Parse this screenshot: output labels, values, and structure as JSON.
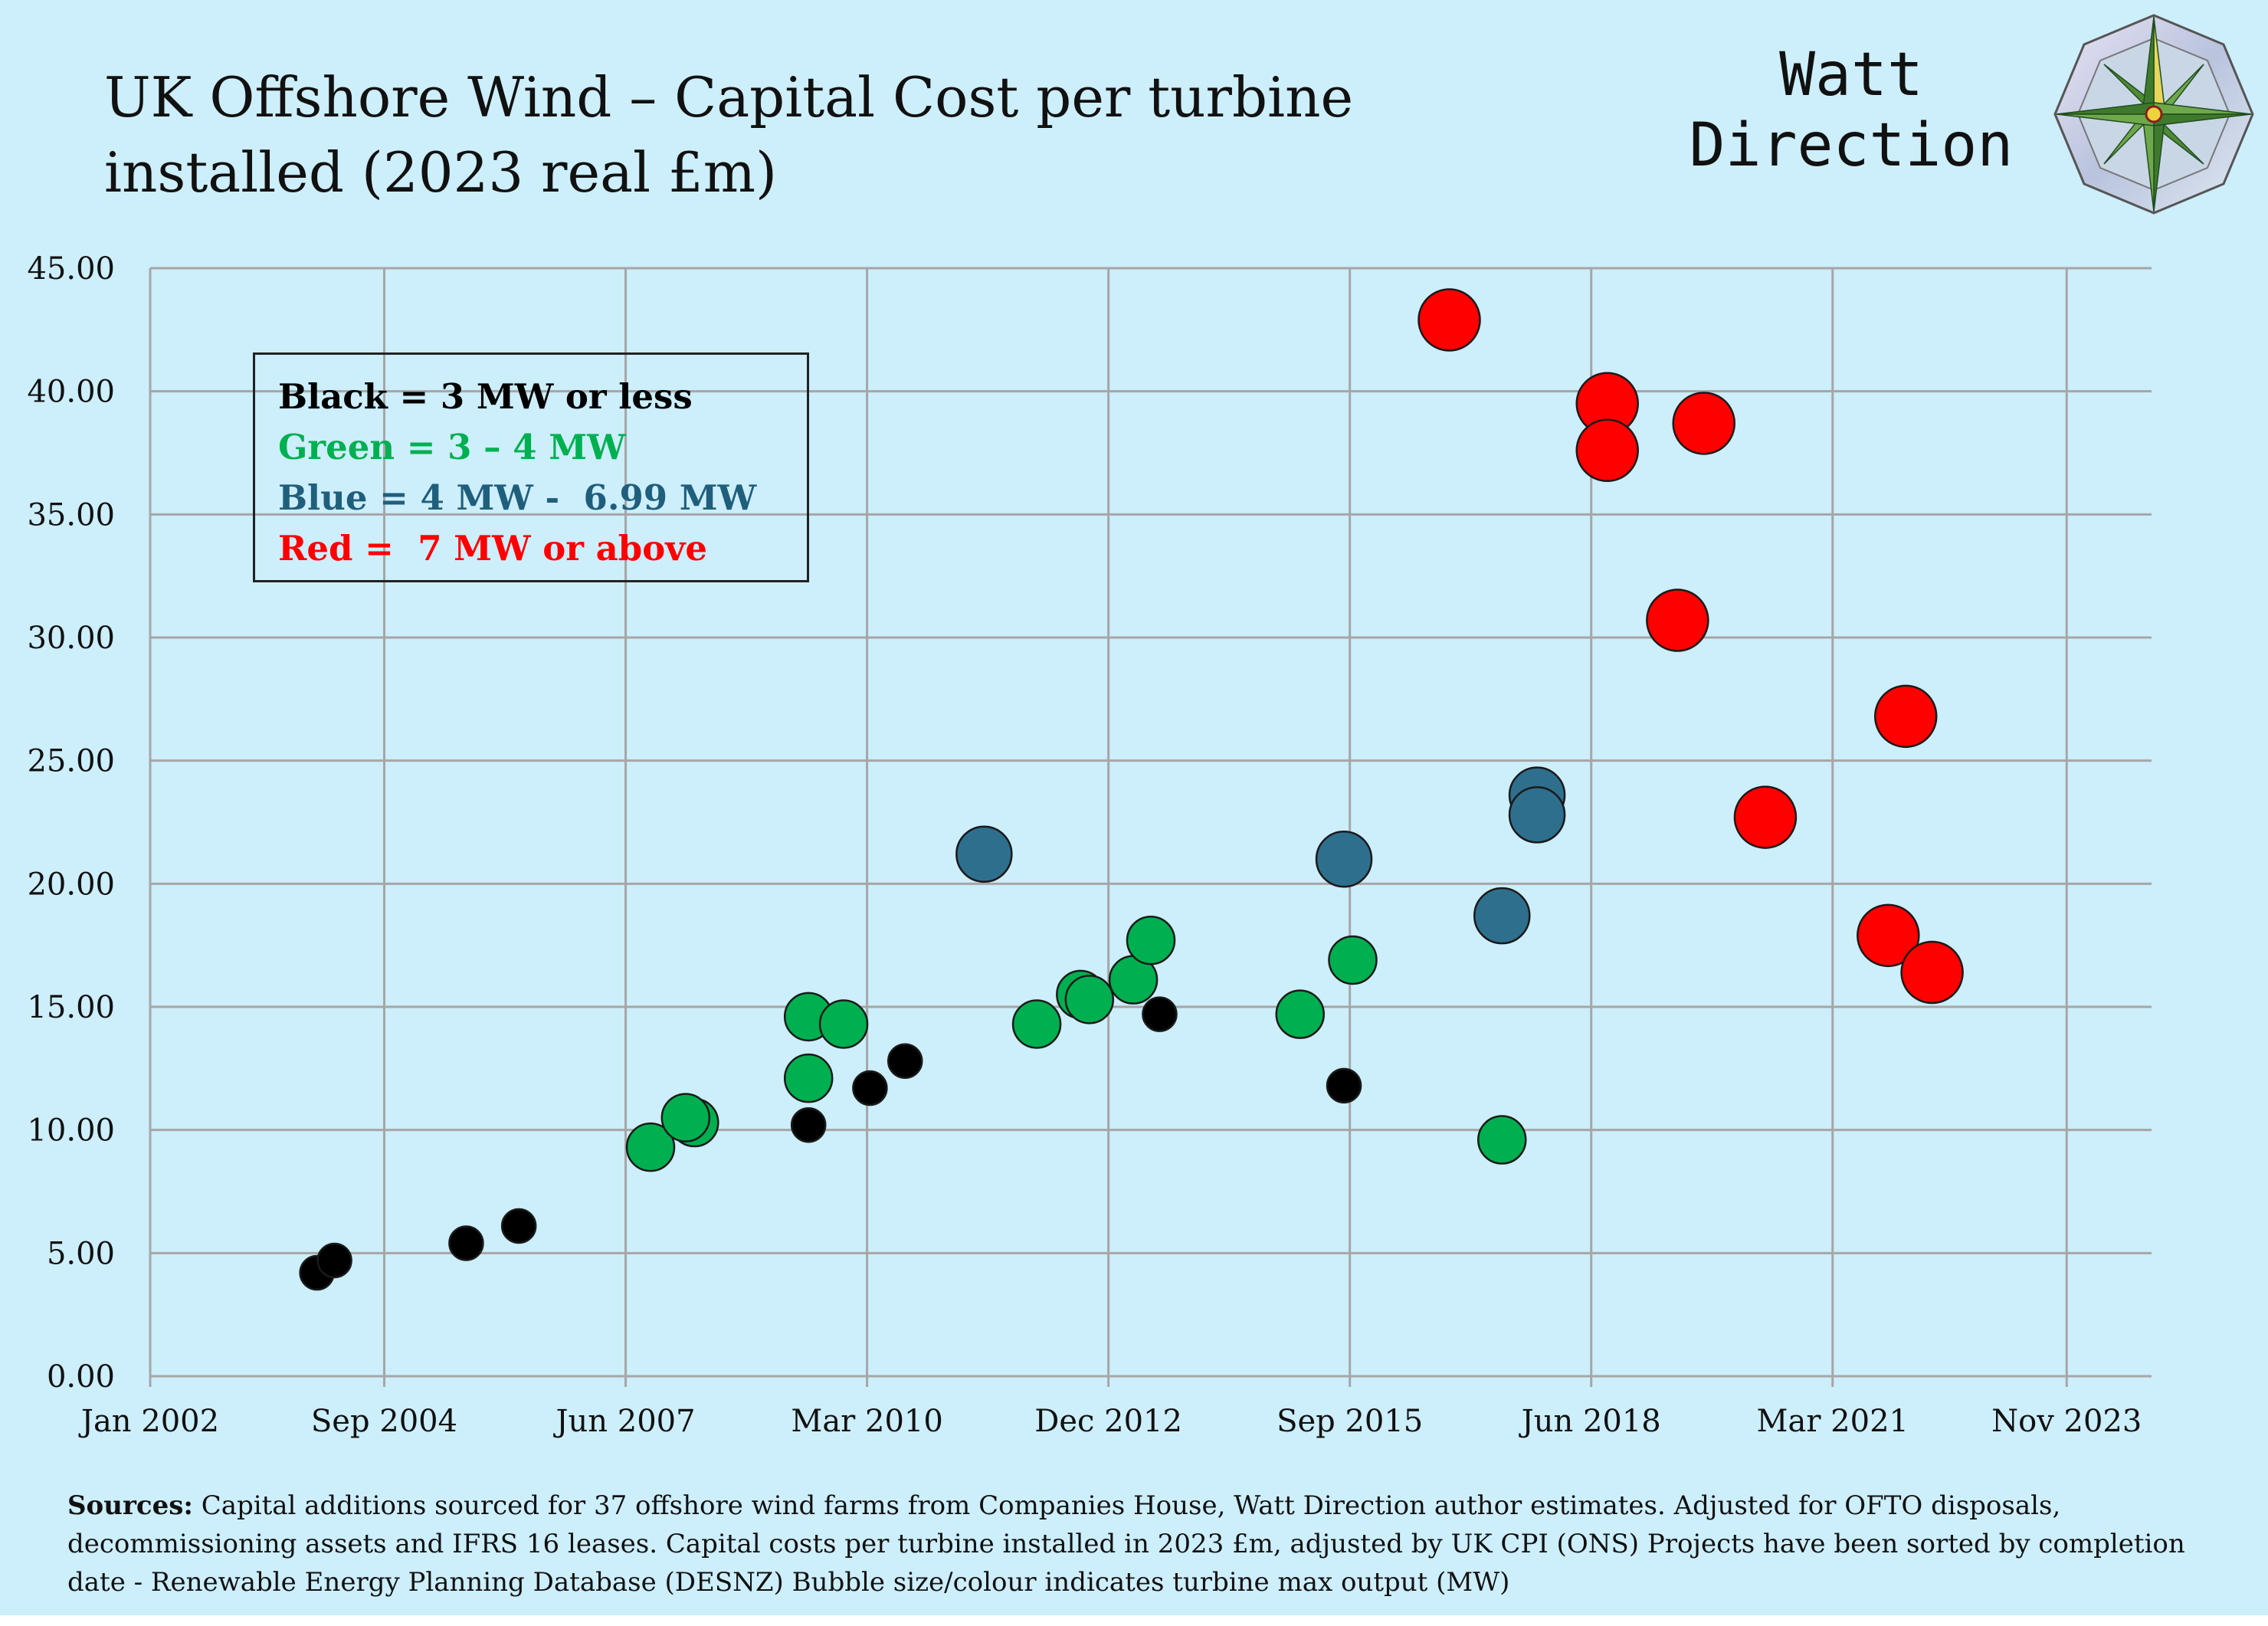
{
  "header": {
    "title": "UK Offshore Wind – Capital Cost per turbine\ninstalled  (2023 real £m)",
    "brand_line1": "Watt",
    "brand_line2": "Direction",
    "logo_icon": "compass-rose-icon"
  },
  "legend": {
    "black": "Black = 3 MW or less",
    "green": "Green = 3 – 4 MW",
    "blue": "Blue = 4 MW -  6.99 MW",
    "red": "Red =  7 MW or above"
  },
  "colors": {
    "background": "#cdeefb",
    "black": "#000000",
    "green": "#00b050",
    "blue": "#2e6f8e",
    "red": "#ff0000",
    "grid": "#a6a6a6"
  },
  "sources": {
    "label": "Sources:",
    "text": " Capital additions sourced for 37 offshore wind farms from Companies House, Watt Direction author estimates. Adjusted for OFTO disposals, decommissioning assets and IFRS 16 leases. Capital costs per turbine installed in 2023 £m, adjusted by  UK CPI (ONS) Projects have been sorted by completion date - Renewable Energy Planning Database (DESNZ) Bubble size/colour indicates turbine max output (MW)"
  },
  "chart_data": {
    "type": "scatter",
    "title": "UK Offshore Wind – Capital Cost per turbine installed  (2023 real £m)",
    "xlabel": "",
    "ylabel": "",
    "grid": true,
    "xlim": [
      2002.0,
      2024.8
    ],
    "ylim": [
      0,
      45
    ],
    "x_ticks": [
      2002.0,
      2004.6667,
      2007.4167,
      2010.1667,
      2012.9167,
      2015.6667,
      2018.4167,
      2021.1667,
      2023.8333
    ],
    "x_tick_labels": [
      "Jan 2002",
      "Sep 2004",
      "Jun 2007",
      "Mar 2010",
      "Dec 2012",
      "Sep 2015",
      "Jun 2018",
      "Mar 2021",
      "Nov 2023"
    ],
    "y_ticks": [
      0,
      5,
      10,
      15,
      20,
      25,
      30,
      35,
      40,
      45
    ],
    "y_tick_labels": [
      "0.00",
      "5.00",
      "10.00",
      "15.00",
      "20.00",
      "25.00",
      "30.00",
      "35.00",
      "40.00",
      "45.00"
    ],
    "series": [
      {
        "name": "Black = 3 MW or less",
        "color": "#000000",
        "bubble_size": 1,
        "points": [
          {
            "x": 2003.9,
            "y": 4.2
          },
          {
            "x": 2004.1,
            "y": 4.7
          },
          {
            "x": 2005.6,
            "y": 5.4
          },
          {
            "x": 2006.2,
            "y": 6.1
          },
          {
            "x": 2009.5,
            "y": 10.2
          },
          {
            "x": 2010.2,
            "y": 11.7
          },
          {
            "x": 2010.6,
            "y": 12.8
          },
          {
            "x": 2013.5,
            "y": 14.7
          },
          {
            "x": 2015.6,
            "y": 11.8
          }
        ]
      },
      {
        "name": "Green = 3 – 4 MW",
        "color": "#00b050",
        "bubble_size": 2,
        "points": [
          {
            "x": 2007.7,
            "y": 9.3
          },
          {
            "x": 2008.2,
            "y": 10.3
          },
          {
            "x": 2008.1,
            "y": 10.5
          },
          {
            "x": 2009.5,
            "y": 12.1
          },
          {
            "x": 2009.5,
            "y": 14.6
          },
          {
            "x": 2009.9,
            "y": 14.3
          },
          {
            "x": 2012.1,
            "y": 14.3
          },
          {
            "x": 2012.6,
            "y": 15.5
          },
          {
            "x": 2012.7,
            "y": 15.3
          },
          {
            "x": 2013.2,
            "y": 16.1
          },
          {
            "x": 2013.4,
            "y": 17.7
          },
          {
            "x": 2015.1,
            "y": 14.7
          },
          {
            "x": 2015.7,
            "y": 16.9
          },
          {
            "x": 2017.4,
            "y": 9.6
          }
        ]
      },
      {
        "name": "Blue = 4 MW -  6.99 MW",
        "color": "#2e6f8e",
        "bubble_size": 3,
        "points": [
          {
            "x": 2011.5,
            "y": 21.2
          },
          {
            "x": 2015.6,
            "y": 21.0
          },
          {
            "x": 2017.4,
            "y": 18.7
          },
          {
            "x": 2017.8,
            "y": 23.6
          },
          {
            "x": 2017.8,
            "y": 22.8
          }
        ]
      },
      {
        "name": "Red =  7 MW or above",
        "color": "#ff0000",
        "bubble_size": 4,
        "points": [
          {
            "x": 2016.8,
            "y": 42.9
          },
          {
            "x": 2018.6,
            "y": 39.5
          },
          {
            "x": 2018.6,
            "y": 37.6
          },
          {
            "x": 2019.7,
            "y": 38.7
          },
          {
            "x": 2019.4,
            "y": 30.7
          },
          {
            "x": 2020.4,
            "y": 22.7
          },
          {
            "x": 2022.0,
            "y": 26.8
          },
          {
            "x": 2021.8,
            "y": 17.9
          },
          {
            "x": 2022.3,
            "y": 16.4
          }
        ]
      }
    ]
  }
}
